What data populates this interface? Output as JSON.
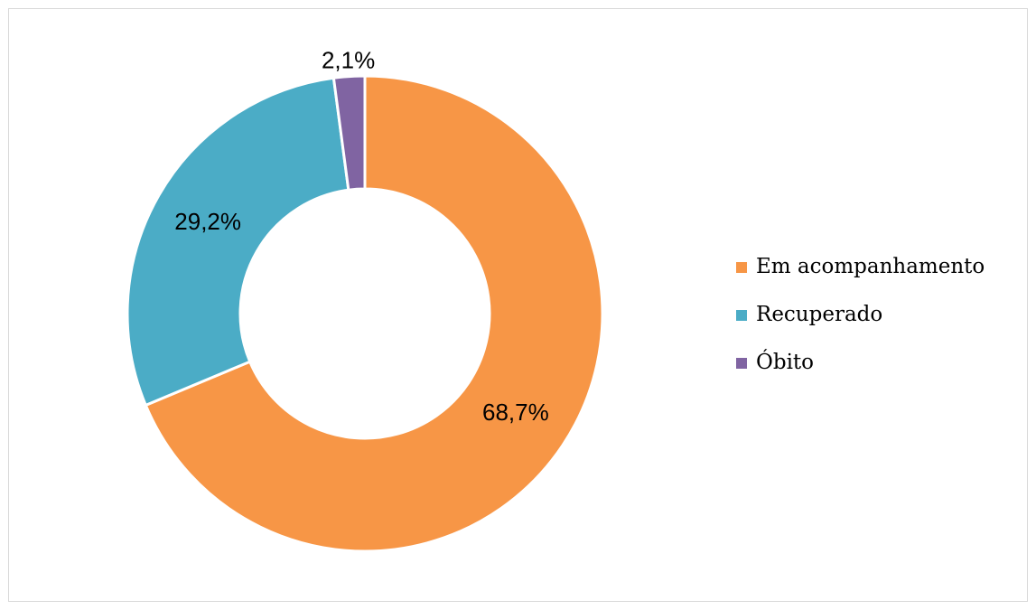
{
  "chart_data": {
    "type": "donut",
    "categories": [
      "Em acompanhamento",
      "Recuperado",
      "Óbito"
    ],
    "values": [
      68.7,
      29.2,
      2.1
    ],
    "value_labels": [
      "68,7%",
      "29,2%",
      "2,1%"
    ],
    "colors": [
      "#f79646",
      "#4bacc6",
      "#8064a2"
    ],
    "legend": "right"
  }
}
